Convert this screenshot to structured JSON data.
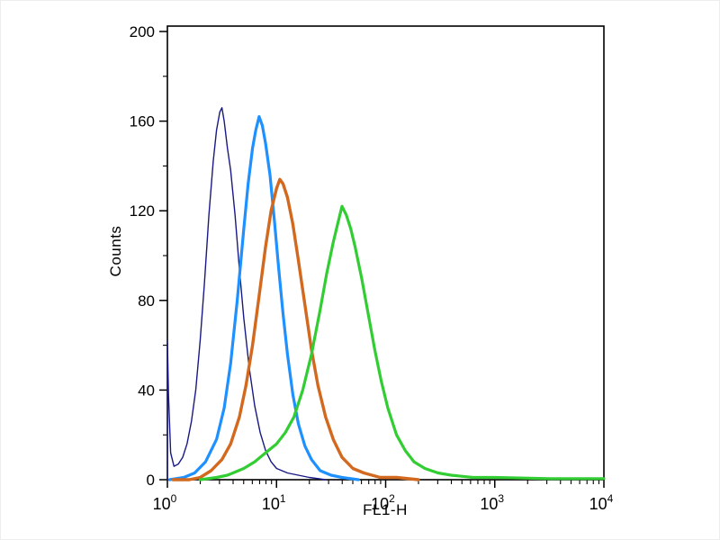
{
  "chart_data": {
    "type": "line",
    "chart_kind": "flow-cytometry-histogram",
    "title": "",
    "xlabel": "FL1-H",
    "ylabel": "Counts",
    "x_scale": "log10",
    "x_range_log10": [
      0,
      4
    ],
    "x_tick_exponents": [
      0,
      1,
      2,
      3,
      4
    ],
    "x_tick_labels_display": [
      "10^0",
      "10^1",
      "10^2",
      "10^3",
      "10^4"
    ],
    "ylim": [
      0,
      200
    ],
    "y_major_ticks": [
      0,
      40,
      80,
      120,
      160,
      200
    ],
    "y_minor_ticks": [
      20,
      60,
      100,
      140,
      180
    ],
    "grid": false,
    "legend": "none",
    "frame_color": "#000000",
    "background_color": "#ffffff",
    "series": [
      {
        "name": "dark-blue-control",
        "color": "#191983",
        "stroke_width": 1.4,
        "peak": {
          "x": 3.2,
          "counts": 166
        },
        "points": [
          [
            0.0,
            0
          ],
          [
            0.0,
            62
          ],
          [
            0.01,
            38
          ],
          [
            0.03,
            12
          ],
          [
            0.06,
            6
          ],
          [
            0.1,
            7
          ],
          [
            0.14,
            10
          ],
          [
            0.18,
            16
          ],
          [
            0.22,
            26
          ],
          [
            0.26,
            40
          ],
          [
            0.3,
            62
          ],
          [
            0.34,
            88
          ],
          [
            0.38,
            118
          ],
          [
            0.42,
            142
          ],
          [
            0.45,
            156
          ],
          [
            0.48,
            164
          ],
          [
            0.5,
            166
          ],
          [
            0.52,
            160
          ],
          [
            0.55,
            148
          ],
          [
            0.58,
            138
          ],
          [
            0.62,
            118
          ],
          [
            0.66,
            94
          ],
          [
            0.7,
            72
          ],
          [
            0.75,
            50
          ],
          [
            0.8,
            33
          ],
          [
            0.85,
            21
          ],
          [
            0.9,
            13
          ],
          [
            0.95,
            8
          ],
          [
            1.0,
            5
          ],
          [
            1.1,
            3
          ],
          [
            1.2,
            2
          ],
          [
            1.3,
            1
          ],
          [
            1.45,
            0
          ]
        ]
      },
      {
        "name": "light-blue",
        "color": "#1e90ff",
        "stroke_width": 3.2,
        "peak": {
          "x": 6.9,
          "counts": 162
        },
        "points": [
          [
            0.02,
            0
          ],
          [
            0.15,
            1
          ],
          [
            0.25,
            3
          ],
          [
            0.35,
            8
          ],
          [
            0.45,
            18
          ],
          [
            0.52,
            32
          ],
          [
            0.58,
            52
          ],
          [
            0.64,
            80
          ],
          [
            0.7,
            112
          ],
          [
            0.74,
            132
          ],
          [
            0.78,
            148
          ],
          [
            0.81,
            156
          ],
          [
            0.84,
            162
          ],
          [
            0.87,
            158
          ],
          [
            0.9,
            150
          ],
          [
            0.94,
            136
          ],
          [
            0.98,
            116
          ],
          [
            1.02,
            94
          ],
          [
            1.06,
            74
          ],
          [
            1.1,
            56
          ],
          [
            1.15,
            38
          ],
          [
            1.2,
            25
          ],
          [
            1.26,
            15
          ],
          [
            1.32,
            9
          ],
          [
            1.4,
            4
          ],
          [
            1.5,
            2
          ],
          [
            1.6,
            1
          ],
          [
            1.75,
            0
          ]
        ]
      },
      {
        "name": "orange",
        "color": "#d2691e",
        "stroke_width": 3.4,
        "peak": {
          "x": 10.7,
          "counts": 134
        },
        "points": [
          [
            0.05,
            0
          ],
          [
            0.2,
            0
          ],
          [
            0.3,
            1
          ],
          [
            0.4,
            4
          ],
          [
            0.5,
            9
          ],
          [
            0.58,
            16
          ],
          [
            0.66,
            28
          ],
          [
            0.72,
            42
          ],
          [
            0.78,
            60
          ],
          [
            0.84,
            82
          ],
          [
            0.9,
            104
          ],
          [
            0.95,
            120
          ],
          [
            1.0,
            130
          ],
          [
            1.03,
            134
          ],
          [
            1.06,
            132
          ],
          [
            1.1,
            126
          ],
          [
            1.15,
            114
          ],
          [
            1.2,
            98
          ],
          [
            1.26,
            78
          ],
          [
            1.32,
            58
          ],
          [
            1.38,
            42
          ],
          [
            1.45,
            28
          ],
          [
            1.52,
            18
          ],
          [
            1.6,
            10
          ],
          [
            1.7,
            5
          ],
          [
            1.8,
            3
          ],
          [
            1.95,
            1
          ],
          [
            2.1,
            1
          ],
          [
            2.3,
            0
          ]
        ]
      },
      {
        "name": "green",
        "color": "#32cd32",
        "stroke_width": 3.2,
        "peak": {
          "x": 40,
          "counts": 122
        },
        "points": [
          [
            0.3,
            0
          ],
          [
            0.45,
            1
          ],
          [
            0.55,
            2
          ],
          [
            0.7,
            5
          ],
          [
            0.8,
            8
          ],
          [
            0.9,
            12
          ],
          [
            1.0,
            16
          ],
          [
            1.08,
            21
          ],
          [
            1.16,
            28
          ],
          [
            1.24,
            40
          ],
          [
            1.32,
            56
          ],
          [
            1.4,
            76
          ],
          [
            1.46,
            92
          ],
          [
            1.52,
            106
          ],
          [
            1.56,
            114
          ],
          [
            1.6,
            122
          ],
          [
            1.64,
            118
          ],
          [
            1.68,
            112
          ],
          [
            1.72,
            104
          ],
          [
            1.78,
            90
          ],
          [
            1.84,
            74
          ],
          [
            1.9,
            58
          ],
          [
            1.96,
            44
          ],
          [
            2.02,
            32
          ],
          [
            2.1,
            20
          ],
          [
            2.18,
            13
          ],
          [
            2.26,
            8
          ],
          [
            2.36,
            5
          ],
          [
            2.48,
            3
          ],
          [
            2.6,
            2
          ],
          [
            2.8,
            1
          ],
          [
            3.0,
            1
          ],
          [
            3.5,
            0.5
          ],
          [
            4.0,
            0.5
          ]
        ]
      }
    ]
  }
}
